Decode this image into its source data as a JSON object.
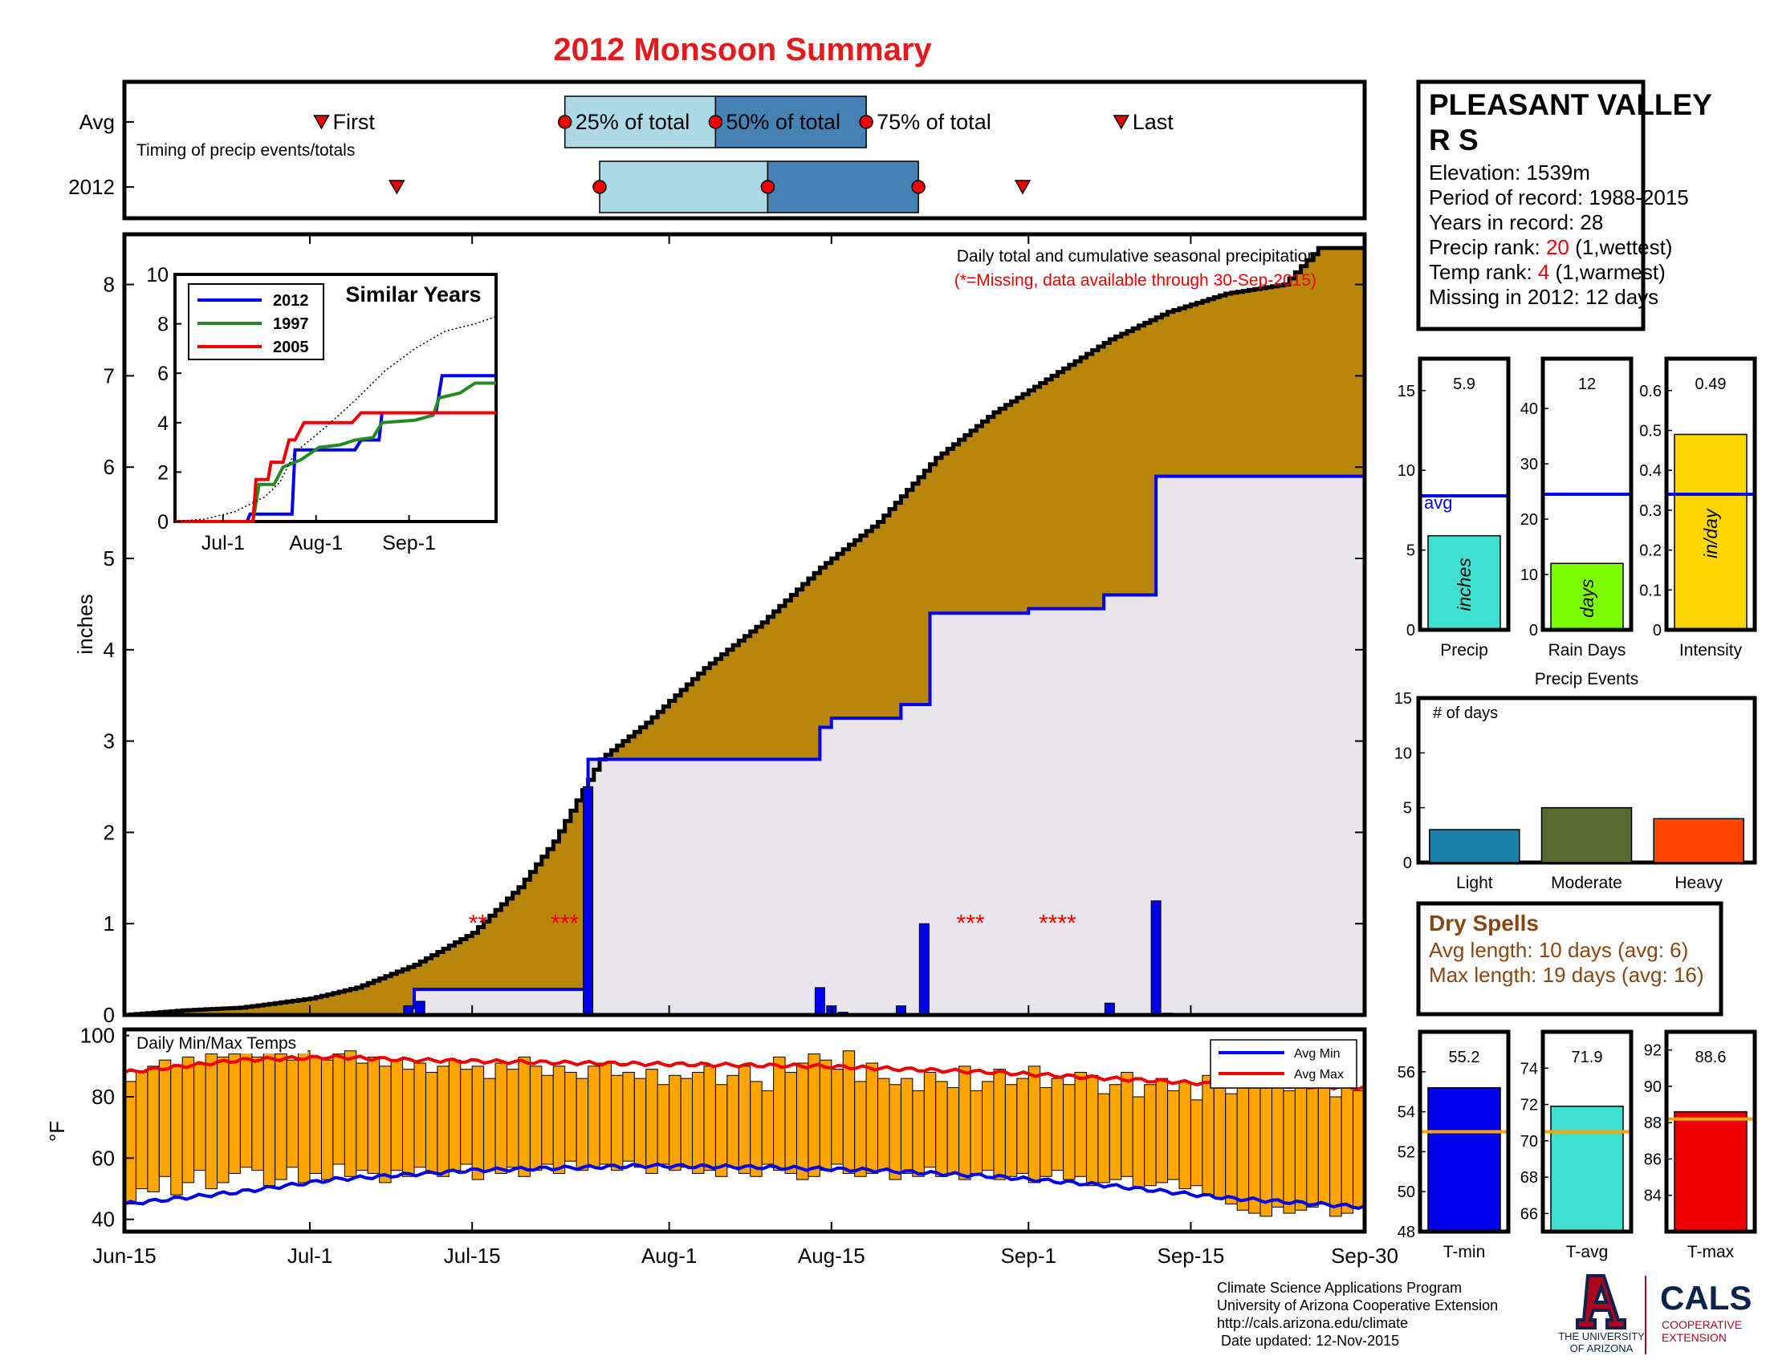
{
  "title": "2012 Monsoon Summary",
  "colors": {
    "title": "#e41a1c",
    "cum_avg_fill": "#b8860b",
    "cum_2012_fill": "#e8e6ea",
    "blue": "#0000ee",
    "red": "#ee0000",
    "light_blue": "#add8e6",
    "steel_blue": "#4682b4",
    "orange": "#ffa500",
    "brown": "#8b4513"
  },
  "timing": {
    "caption": "Timing of precip events/totals",
    "rows": [
      "Avg",
      "2012"
    ],
    "labels": {
      "first": "First",
      "p25": "25% of total",
      "p50": "50% of total",
      "p75": "75% of total",
      "last": "Last"
    },
    "avg_days": {
      "first": 17,
      "p25": 38,
      "p50": 51,
      "p75": 64,
      "last": 86
    },
    "y2012_days": {
      "first": 23.5,
      "p25": 41,
      "p50": 55.5,
      "p75": 68.5,
      "last": 77.5
    }
  },
  "station": {
    "name_line1": "PLEASANT VALLEY",
    "name_line2": "R S",
    "elevation": "Elevation: 1539m",
    "period": "Period of record: 1988-2015",
    "years": "Years in record: 28",
    "precip_rank_label": "Precip rank: ",
    "precip_rank_value": "20",
    "precip_rank_note": " (1,wettest)",
    "temp_rank_label": "Temp rank: ",
    "temp_rank_value": "4",
    "temp_rank_note": " (1,warmest)",
    "missing": "Missing in 2012: 12 days"
  },
  "chart_data": [
    {
      "id": "main",
      "type": "area",
      "title": "Daily total and cumulative seasonal precipitation",
      "subtitle": "(*=Missing, data available through 30-Sep-2015)",
      "ylabel": "inches",
      "xlim": [
        "Jun-15",
        "Sep-30"
      ],
      "ylim": [
        0,
        8.5
      ],
      "x_ticks": [
        "Jun-15",
        "Jul-1",
        "Jul-15",
        "Aug-1",
        "Aug-15",
        "Sep-1",
        "Sep-15",
        "Sep-30"
      ],
      "x_tick_days": [
        0,
        16,
        30,
        47,
        61,
        78,
        92,
        107
      ],
      "y_ticks": [
        0,
        1,
        2,
        3,
        4,
        5,
        6,
        7,
        8
      ],
      "avg_cumulative_points": [
        [
          0,
          0
        ],
        [
          5,
          0.05
        ],
        [
          10,
          0.08
        ],
        [
          16,
          0.18
        ],
        [
          20,
          0.3
        ],
        [
          25,
          0.55
        ],
        [
          30,
          0.9
        ],
        [
          34,
          1.4
        ],
        [
          37,
          1.9
        ],
        [
          39,
          2.35
        ],
        [
          41,
          2.8
        ],
        [
          45,
          3.2
        ],
        [
          50,
          3.8
        ],
        [
          55,
          4.3
        ],
        [
          60,
          4.9
        ],
        [
          65,
          5.4
        ],
        [
          70,
          6.1
        ],
        [
          75,
          6.6
        ],
        [
          80,
          7.0
        ],
        [
          85,
          7.4
        ],
        [
          90,
          7.7
        ],
        [
          95,
          7.9
        ],
        [
          100,
          8.0
        ],
        [
          103,
          8.4
        ],
        [
          107,
          8.4
        ]
      ],
      "cumulative_2012_points": [
        [
          0,
          0
        ],
        [
          24.5,
          0.08
        ],
        [
          25,
          0.28
        ],
        [
          39.5,
          0.28
        ],
        [
          40,
          2.8
        ],
        [
          59,
          2.8
        ],
        [
          60,
          3.15
        ],
        [
          61,
          3.25
        ],
        [
          66,
          3.25
        ],
        [
          67,
          3.4
        ],
        [
          69,
          3.4
        ],
        [
          69.5,
          4.4
        ],
        [
          77.5,
          4.4
        ],
        [
          78,
          4.45
        ],
        [
          84,
          4.45
        ],
        [
          84.5,
          4.6
        ],
        [
          88.5,
          4.6
        ],
        [
          89,
          5.9
        ],
        [
          107,
          5.9
        ]
      ],
      "daily_2012": [
        [
          24.5,
          0.1
        ],
        [
          25.5,
          0.15
        ],
        [
          40,
          2.5
        ],
        [
          60,
          0.3
        ],
        [
          61,
          0.1
        ],
        [
          62,
          0.03
        ],
        [
          67,
          0.1
        ],
        [
          69,
          1.0
        ],
        [
          85,
          0.13
        ],
        [
          89,
          1.25
        ],
        [
          90,
          0.02
        ]
      ],
      "missing_marks": [
        {
          "x": 30.5,
          "label": "**"
        },
        {
          "x": 38,
          "label": "***"
        },
        {
          "x": 73,
          "label": "***"
        },
        {
          "x": 80.5,
          "label": "****"
        }
      ]
    },
    {
      "id": "similar",
      "type": "line",
      "title": "Similar Years",
      "xlim": [
        "Jun-15",
        "Sep-30"
      ],
      "ylim": [
        0,
        10
      ],
      "y_ticks": [
        0,
        2,
        4,
        6,
        8,
        10
      ],
      "x_ticks": [
        "Jul-1",
        "Aug-1",
        "Sep-1"
      ],
      "x_tick_days": [
        16,
        47,
        78
      ],
      "series": [
        {
          "name": "2012",
          "color": "#0000ee",
          "points": [
            [
              0,
              0
            ],
            [
              24,
              0
            ],
            [
              25,
              0.3
            ],
            [
              39,
              0.3
            ],
            [
              40,
              2.9
            ],
            [
              60,
              2.9
            ],
            [
              62,
              3.3
            ],
            [
              68,
              3.3
            ],
            [
              69,
              4.4
            ],
            [
              87,
              4.4
            ],
            [
              89,
              5.9
            ],
            [
              107,
              5.9
            ]
          ]
        },
        {
          "name": "1997",
          "color": "#228b22",
          "points": [
            [
              0,
              0
            ],
            [
              26,
              0
            ],
            [
              28,
              1.5
            ],
            [
              33,
              1.5
            ],
            [
              36,
              2.2
            ],
            [
              42,
              2.5
            ],
            [
              48,
              3.0
            ],
            [
              55,
              3.1
            ],
            [
              60,
              3.3
            ],
            [
              66,
              3.4
            ],
            [
              69,
              4.0
            ],
            [
              80,
              4.1
            ],
            [
              86,
              4.3
            ],
            [
              88,
              5.0
            ],
            [
              95,
              5.2
            ],
            [
              100,
              5.6
            ],
            [
              107,
              5.6
            ]
          ]
        },
        {
          "name": "2005",
          "color": "#ee0000",
          "points": [
            [
              0,
              0
            ],
            [
              26,
              0
            ],
            [
              27,
              1.7
            ],
            [
              31,
              1.7
            ],
            [
              32,
              2.4
            ],
            [
              36,
              2.4
            ],
            [
              38,
              3.3
            ],
            [
              40,
              3.3
            ],
            [
              43,
              4.0
            ],
            [
              56,
              4.0
            ],
            [
              59,
              4.0
            ],
            [
              62,
              4.4
            ],
            [
              82,
              4.4
            ],
            [
              95,
              4.4
            ],
            [
              107,
              4.4
            ]
          ]
        },
        {
          "name": "",
          "color": "#000000",
          "dotted": true,
          "points": [
            [
              0,
              0
            ],
            [
              10,
              0.1
            ],
            [
              20,
              0.4
            ],
            [
              30,
              1.0
            ],
            [
              35,
              1.6
            ],
            [
              40,
              2.8
            ],
            [
              50,
              3.8
            ],
            [
              60,
              4.9
            ],
            [
              70,
              6.1
            ],
            [
              80,
              7.0
            ],
            [
              90,
              7.7
            ],
            [
              100,
              8.0
            ],
            [
              107,
              8.3
            ]
          ]
        }
      ]
    },
    {
      "id": "summary_bars",
      "type": "bar",
      "panels": [
        {
          "label": "Precip",
          "unit": "inches",
          "value": 5.9,
          "value_label": "5.9",
          "avg": 8.4,
          "avg_label": "avg",
          "ylim": [
            0,
            17
          ],
          "y_ticks": [
            0,
            5,
            10,
            15
          ],
          "color": "#40e0d0"
        },
        {
          "label": "Rain Days",
          "unit": "days",
          "value": 12,
          "value_label": "12",
          "avg": 24.5,
          "ylim": [
            0,
            49
          ],
          "y_ticks": [
            0,
            10,
            20,
            30,
            40
          ],
          "color": "#7cfc00"
        },
        {
          "label": "Intensity",
          "unit": "in/day",
          "value": 0.49,
          "value_label": "0.49",
          "avg": 0.34,
          "ylim": [
            0,
            0.68
          ],
          "y_ticks": [
            0,
            0.1,
            0.2,
            0.3,
            0.4,
            0.5,
            0.6
          ],
          "color": "#ffd700"
        }
      ]
    },
    {
      "id": "precip_events",
      "type": "bar",
      "title": "Precip Events",
      "ylabel": "# of days",
      "ylim": [
        0,
        15
      ],
      "y_ticks": [
        0,
        5,
        10,
        15
      ],
      "categories": [
        "Light",
        "Moderate",
        "Heavy"
      ],
      "values": [
        3,
        5,
        4
      ],
      "colors": [
        "#1b7fa8",
        "#556b2f",
        "#ff4500"
      ]
    },
    {
      "id": "temps",
      "type": "bar",
      "title": "Daily Min/Max Temps",
      "ylabel": "°F",
      "ylim": [
        36,
        102
      ],
      "y_ticks": [
        40,
        60,
        80,
        100
      ],
      "legend": [
        "Avg Min",
        "Avg Max"
      ],
      "legend_position": "top-right",
      "daily_max": [
        85,
        88,
        90,
        92,
        90,
        93,
        91,
        94,
        93,
        94,
        95,
        93,
        95,
        94,
        92,
        95,
        93,
        92,
        94,
        95,
        91,
        93,
        90,
        92,
        89,
        91,
        88,
        90,
        92,
        89,
        90,
        86,
        91,
        89,
        93,
        90,
        87,
        90,
        88,
        86,
        90,
        91,
        87,
        88,
        86,
        89,
        84,
        87,
        86,
        88,
        90,
        84,
        87,
        90,
        85,
        82,
        93,
        88,
        91,
        94,
        92,
        89,
        95,
        85,
        91,
        86,
        84,
        86,
        82,
        88,
        85,
        83,
        90,
        82,
        85,
        89,
        84,
        86,
        90,
        83,
        86,
        84,
        88,
        87,
        81,
        84,
        88,
        80,
        84,
        86,
        82,
        85,
        79,
        87,
        83,
        81,
        86,
        84,
        87,
        85,
        82,
        86,
        83,
        84,
        80,
        85,
        82
      ],
      "daily_min": [
        45,
        50,
        49,
        54,
        48,
        52,
        56,
        50,
        52,
        55,
        57,
        56,
        51,
        53,
        57,
        52,
        55,
        53,
        58,
        54,
        56,
        55,
        52,
        56,
        54,
        57,
        55,
        54,
        56,
        58,
        53,
        56,
        55,
        57,
        54,
        56,
        58,
        55,
        59,
        56,
        57,
        58,
        56,
        59,
        57,
        55,
        58,
        56,
        57,
        55,
        56,
        54,
        57,
        55,
        54,
        58,
        56,
        55,
        53,
        54,
        56,
        58,
        55,
        54,
        55,
        56,
        53,
        55,
        54,
        57,
        54,
        55,
        53,
        55,
        56,
        53,
        54,
        55,
        52,
        54,
        56,
        53,
        54,
        51,
        52,
        53,
        54,
        50,
        51,
        52,
        53,
        50,
        51,
        48,
        47,
        45,
        43,
        42,
        41,
        44,
        42,
        43,
        44,
        45,
        41,
        42,
        44
      ],
      "avg_max_points": [
        [
          0,
          88
        ],
        [
          10,
          92
        ],
        [
          18,
          93
        ],
        [
          25,
          92
        ],
        [
          40,
          91
        ],
        [
          60,
          90
        ],
        [
          75,
          88
        ],
        [
          85,
          86
        ],
        [
          95,
          84
        ],
        [
          107,
          83
        ]
      ],
      "avg_min_points": [
        [
          0,
          45
        ],
        [
          10,
          49
        ],
        [
          18,
          53
        ],
        [
          30,
          56
        ],
        [
          45,
          57.5
        ],
        [
          55,
          57
        ],
        [
          65,
          56
        ],
        [
          75,
          54
        ],
        [
          85,
          51
        ],
        [
          95,
          47
        ],
        [
          107,
          44
        ]
      ]
    },
    {
      "id": "temp_summary",
      "type": "bar",
      "panels": [
        {
          "label": "T-min",
          "value": 55.2,
          "value_label": "55.2",
          "avg": 53.0,
          "ylim": [
            48,
            58
          ],
          "y_ticks": [
            48,
            50,
            52,
            54,
            56
          ],
          "color": "#0000ee"
        },
        {
          "label": "T-avg",
          "value": 71.9,
          "value_label": "71.9",
          "avg": 70.5,
          "ylim": [
            65,
            76
          ],
          "y_ticks": [
            66,
            68,
            70,
            72,
            74
          ],
          "color": "#40e0d0"
        },
        {
          "label": "T-max",
          "value": 88.6,
          "value_label": "88.6",
          "avg": 88.2,
          "ylim": [
            82,
            93
          ],
          "y_ticks": [
            84,
            86,
            88,
            90,
            92
          ],
          "color": "#ee0000"
        }
      ]
    }
  ],
  "dry_spells": {
    "title": "Dry Spells",
    "avg_length": "Avg length: 10 days (avg: 6)",
    "max_length": "Max length: 19 days (avg: 16)"
  },
  "footer": {
    "line1": "Climate Science Applications Program",
    "line2": "University of Arizona Cooperative Extension",
    "line3": "http://cals.arizona.edu/climate",
    "line4": " Date updated: 12-Nov-2015"
  },
  "logos": {
    "ua_line1": "THE UNIVERSITY",
    "ua_line2": "OF ARIZONA",
    "cals": "CALS",
    "coop1": "COOPERATIVE",
    "coop2": "EXTENSION"
  }
}
